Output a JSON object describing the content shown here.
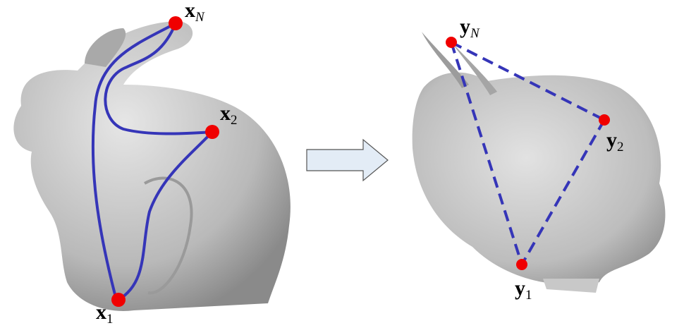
{
  "points": [
    {
      "symbol": "x",
      "subscript": "N"
    },
    {
      "symbol": "x",
      "subscript": "2"
    },
    {
      "symbol": "x",
      "subscript": "1"
    },
    {
      "symbol": "y",
      "subscript": "N"
    },
    {
      "symbol": "y",
      "subscript": "2"
    },
    {
      "symbol": "y",
      "subscript": "1"
    }
  ]
}
